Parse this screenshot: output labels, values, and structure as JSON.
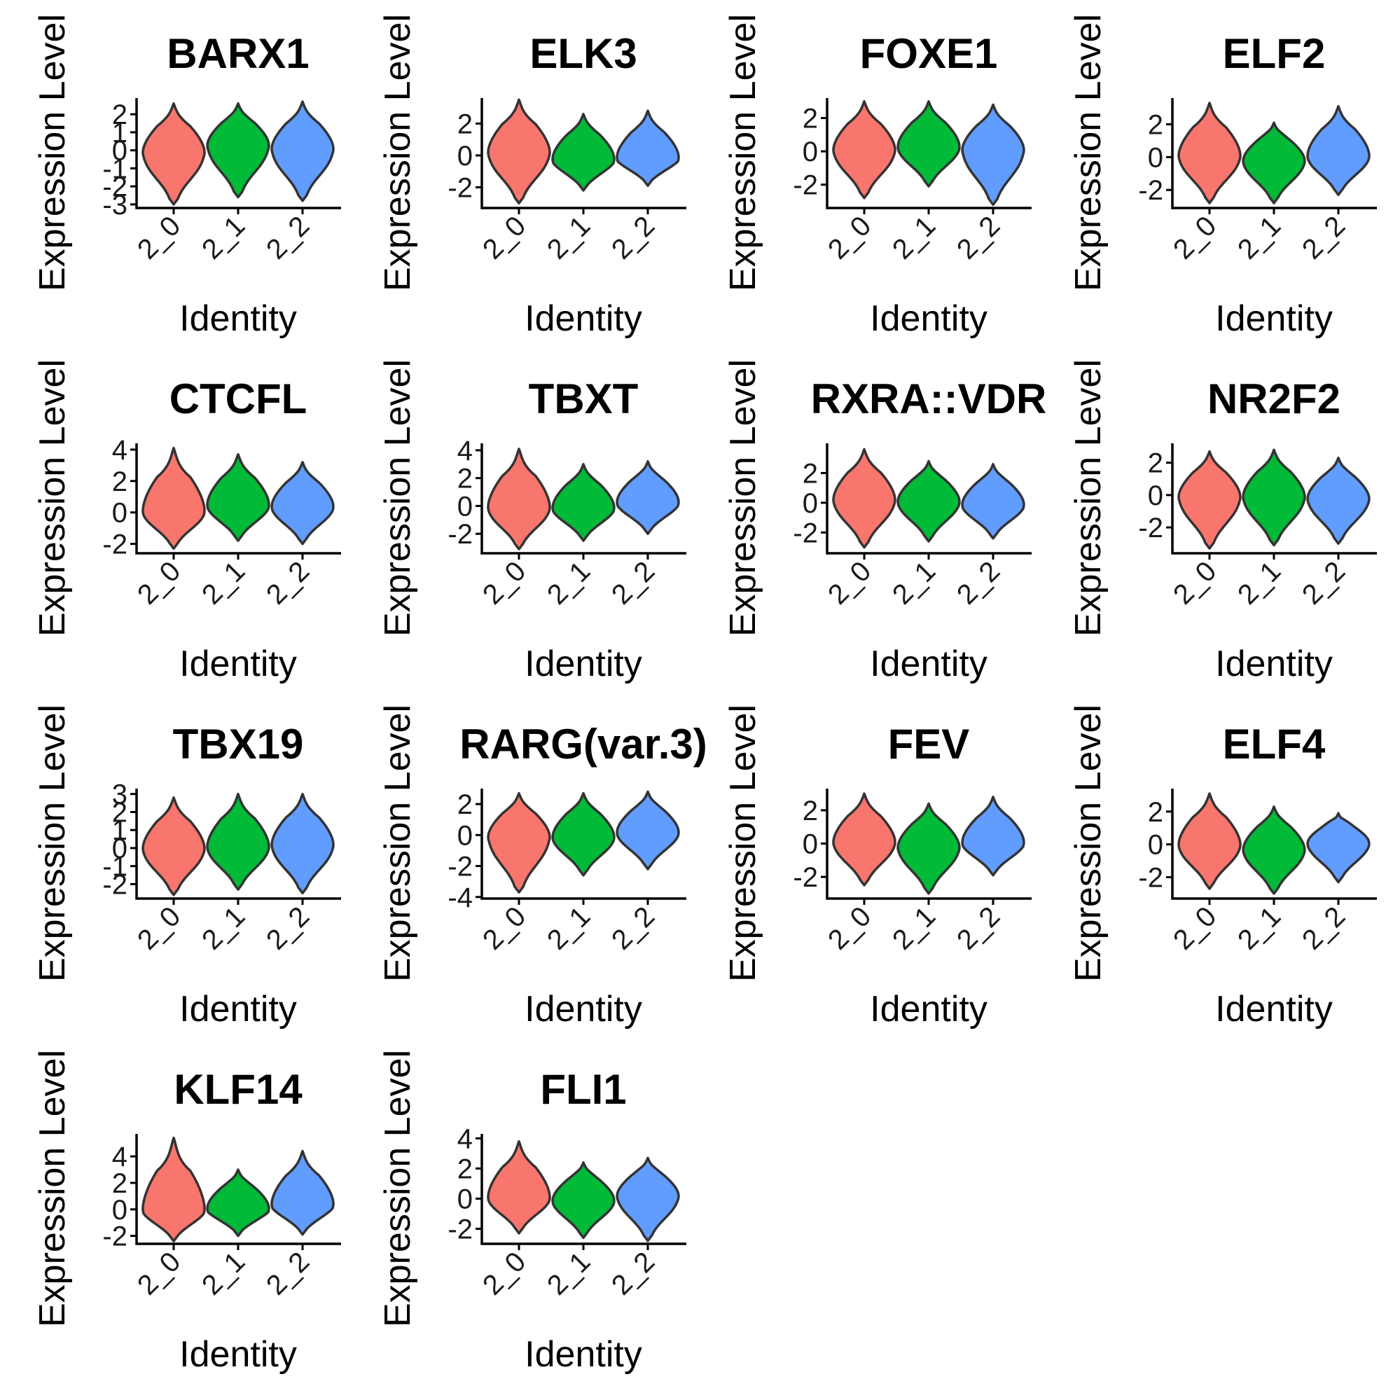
{
  "axis_labels": {
    "x": "Identity",
    "y": "Expression Level"
  },
  "colors": {
    "2_0": "#F8766D",
    "2_1": "#00BA38",
    "2_2": "#619CFF"
  },
  "chart_data": [
    {
      "type": "violin",
      "title": "BARX1",
      "categories": [
        "2_0",
        "2_1",
        "2_2"
      ],
      "ylim": [
        -3.2,
        2.9
      ],
      "yticks": [
        -3,
        -2,
        -1,
        0,
        1,
        2
      ],
      "violins": [
        {
          "min": -3.0,
          "max": 2.6,
          "center": -0.2
        },
        {
          "min": -2.6,
          "max": 2.6,
          "center": 0.2
        },
        {
          "min": -2.8,
          "max": 2.7,
          "center": 0.0
        }
      ]
    },
    {
      "type": "violin",
      "title": "ELK3",
      "categories": [
        "2_0",
        "2_1",
        "2_2"
      ],
      "ylim": [
        -3.3,
        3.6
      ],
      "yticks": [
        -2,
        0,
        2
      ],
      "violins": [
        {
          "min": -3.0,
          "max": 3.5,
          "center": 0.1
        },
        {
          "min": -2.2,
          "max": 2.6,
          "center": -0.3
        },
        {
          "min": -1.9,
          "max": 2.8,
          "center": -0.2
        }
      ]
    },
    {
      "type": "violin",
      "title": "FOXE1",
      "categories": [
        "2_0",
        "2_1",
        "2_2"
      ],
      "ylim": [
        -3.4,
        3.2
      ],
      "yticks": [
        -2,
        0,
        2
      ],
      "violins": [
        {
          "min": -2.8,
          "max": 3.0,
          "center": 0.0
        },
        {
          "min": -2.1,
          "max": 3.0,
          "center": 0.2
        },
        {
          "min": -3.2,
          "max": 2.8,
          "center": 0.0
        }
      ]
    },
    {
      "type": "violin",
      "title": "ELF2",
      "categories": [
        "2_0",
        "2_1",
        "2_2"
      ],
      "ylim": [
        -3.1,
        3.6
      ],
      "yticks": [
        -2,
        0,
        2
      ],
      "violins": [
        {
          "min": -2.8,
          "max": 3.3,
          "center": 0.0
        },
        {
          "min": -2.8,
          "max": 2.1,
          "center": -0.3
        },
        {
          "min": -2.3,
          "max": 3.1,
          "center": 0.0
        }
      ]
    },
    {
      "type": "violin",
      "title": "CTCFL",
      "categories": [
        "2_0",
        "2_1",
        "2_2"
      ],
      "ylim": [
        -2.6,
        4.4
      ],
      "yticks": [
        -2,
        0,
        2,
        4
      ],
      "violins": [
        {
          "min": -2.3,
          "max": 4.1,
          "center": 0.0
        },
        {
          "min": -1.8,
          "max": 3.7,
          "center": 0.4
        },
        {
          "min": -2.0,
          "max": 3.2,
          "center": 0.3
        }
      ]
    },
    {
      "type": "violin",
      "title": "TBXT",
      "categories": [
        "2_0",
        "2_1",
        "2_2"
      ],
      "ylim": [
        -3.4,
        4.5
      ],
      "yticks": [
        -2,
        0,
        2,
        4
      ],
      "violins": [
        {
          "min": -3.1,
          "max": 4.1,
          "center": -0.2
        },
        {
          "min": -2.5,
          "max": 3.0,
          "center": -0.2
        },
        {
          "min": -2.0,
          "max": 3.2,
          "center": 0.2
        }
      ]
    },
    {
      "type": "violin",
      "title": "RXRA::VDR",
      "categories": [
        "2_0",
        "2_1",
        "2_2"
      ],
      "ylim": [
        -3.4,
        4.0
      ],
      "yticks": [
        -2,
        0,
        2
      ],
      "violins": [
        {
          "min": -3.0,
          "max": 3.6,
          "center": 0.1
        },
        {
          "min": -2.6,
          "max": 2.8,
          "center": 0.0
        },
        {
          "min": -2.4,
          "max": 2.6,
          "center": -0.2
        }
      ]
    },
    {
      "type": "violin",
      "title": "NR2F2",
      "categories": [
        "2_0",
        "2_1",
        "2_2"
      ],
      "ylim": [
        -3.6,
        3.2
      ],
      "yticks": [
        -2,
        0,
        2
      ],
      "violins": [
        {
          "min": -3.3,
          "max": 2.7,
          "center": -0.2
        },
        {
          "min": -3.1,
          "max": 2.8,
          "center": -0.2
        },
        {
          "min": -3.0,
          "max": 2.3,
          "center": -0.3
        }
      ]
    },
    {
      "type": "violin",
      "title": "TBX19",
      "categories": [
        "2_0",
        "2_1",
        "2_2"
      ],
      "ylim": [
        -2.8,
        3.3
      ],
      "yticks": [
        -2,
        -1,
        0,
        1,
        2,
        3
      ],
      "violins": [
        {
          "min": -2.6,
          "max": 2.8,
          "center": -0.1
        },
        {
          "min": -2.3,
          "max": 3.0,
          "center": 0.0
        },
        {
          "min": -2.5,
          "max": 3.0,
          "center": 0.1
        }
      ]
    },
    {
      "type": "violin",
      "title": "RARG(var.3)",
      "categories": [
        "2_0",
        "2_1",
        "2_2"
      ],
      "ylim": [
        -4.1,
        3.0
      ],
      "yticks": [
        -4,
        -2,
        0,
        2
      ],
      "violins": [
        {
          "min": -3.7,
          "max": 2.7,
          "center": -0.2
        },
        {
          "min": -2.6,
          "max": 2.7,
          "center": -0.2
        },
        {
          "min": -2.2,
          "max": 2.8,
          "center": 0.1
        }
      ]
    },
    {
      "type": "violin",
      "title": "FEV",
      "categories": [
        "2_0",
        "2_1",
        "2_2"
      ],
      "ylim": [
        -3.3,
        3.3
      ],
      "yticks": [
        -2,
        0,
        2
      ],
      "violins": [
        {
          "min": -2.5,
          "max": 3.0,
          "center": 0.0
        },
        {
          "min": -3.0,
          "max": 2.4,
          "center": -0.3
        },
        {
          "min": -1.9,
          "max": 2.8,
          "center": 0.0
        }
      ]
    },
    {
      "type": "violin",
      "title": "ELF4",
      "categories": [
        "2_0",
        "2_1",
        "2_2"
      ],
      "ylim": [
        -3.3,
        3.4
      ],
      "yticks": [
        -2,
        0,
        2
      ],
      "violins": [
        {
          "min": -2.7,
          "max": 3.1,
          "center": -0.1
        },
        {
          "min": -3.0,
          "max": 2.3,
          "center": -0.4
        },
        {
          "min": -2.3,
          "max": 1.9,
          "center": 0.0
        }
      ]
    },
    {
      "type": "violin",
      "title": "KLF14",
      "categories": [
        "2_0",
        "2_1",
        "2_2"
      ],
      "ylim": [
        -2.6,
        5.7
      ],
      "yticks": [
        -2,
        0,
        2,
        4
      ],
      "violins": [
        {
          "min": -2.4,
          "max": 5.4,
          "center": -0.1
        },
        {
          "min": -2.0,
          "max": 3.0,
          "center": 0.0
        },
        {
          "min": -1.9,
          "max": 4.4,
          "center": 0.3
        }
      ]
    },
    {
      "type": "violin",
      "title": "FLI1",
      "categories": [
        "2_0",
        "2_1",
        "2_2"
      ],
      "ylim": [
        -3.0,
        4.3
      ],
      "yticks": [
        -2,
        0,
        2,
        4
      ],
      "violins": [
        {
          "min": -2.3,
          "max": 3.8,
          "center": 0.0
        },
        {
          "min": -2.6,
          "max": 2.4,
          "center": -0.2
        },
        {
          "min": -2.8,
          "max": 2.7,
          "center": 0.1
        }
      ]
    }
  ]
}
